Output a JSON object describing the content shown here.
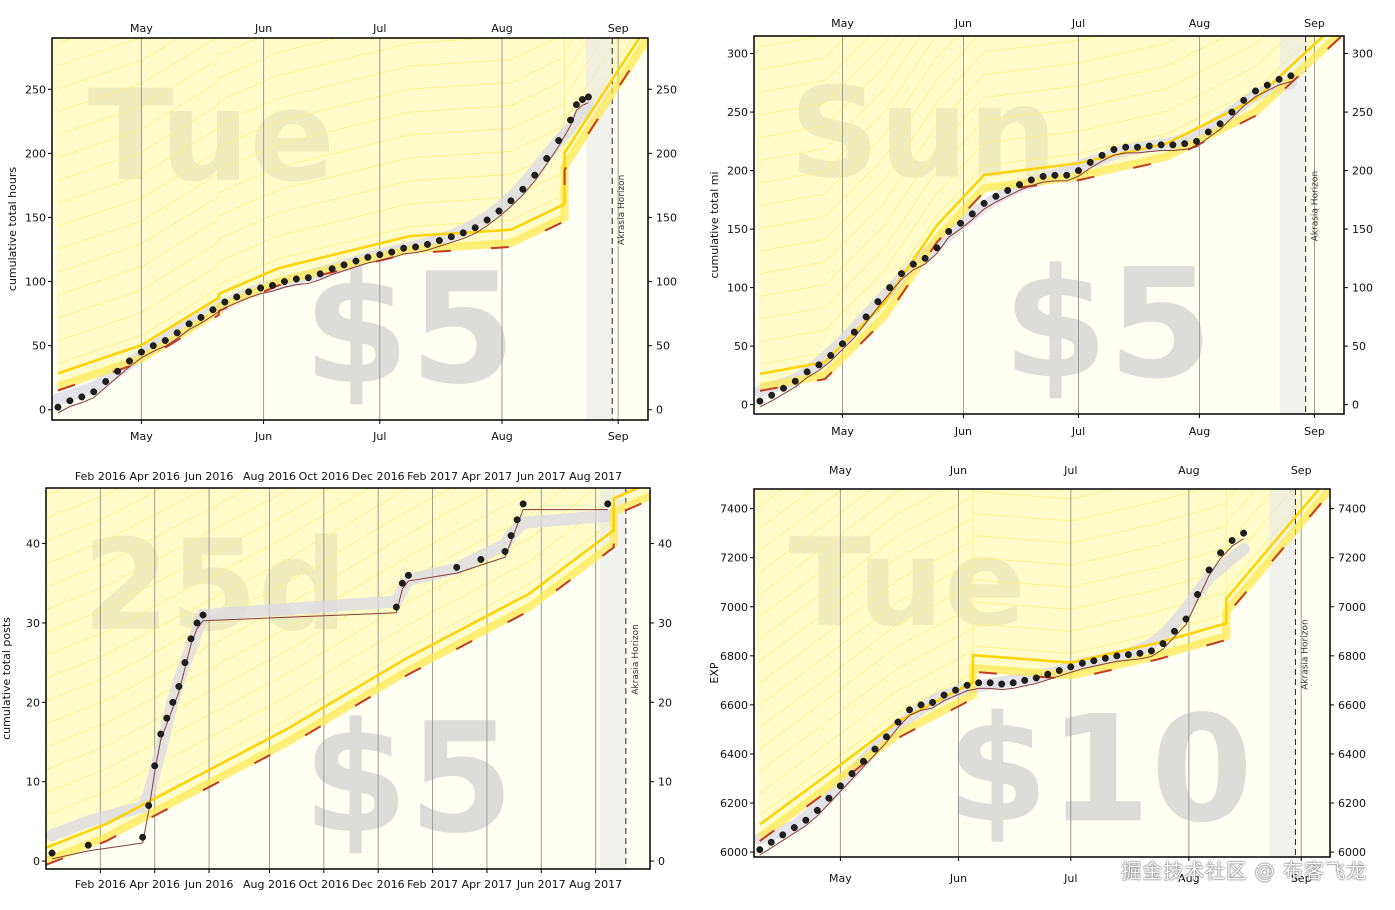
{
  "watermark": "掘金技术社区 @ 布客飞龙",
  "colors": {
    "plot_bg": "#fffff4",
    "road_fill": "#fffaa8",
    "road_line": "#ffd200",
    "faint_line": "#faf38a",
    "pink_dotted": "#e8a080",
    "datapoint": "#1f1f1f",
    "trend_line": "#8b3a3a",
    "moving_avg": "#d9d9e6",
    "watermark_text": "#d0d0d0",
    "dash_red": "#c23b22",
    "axis": "#000000",
    "month_line": "#9a9a9a"
  },
  "chart_data": [
    {
      "id": "tl",
      "type": "line",
      "ylabel": "cumulative total hours",
      "ylim": [
        -8,
        290
      ],
      "yticks": [
        0,
        50,
        100,
        150,
        200,
        250
      ],
      "xlim": [
        0,
        100
      ],
      "months": [
        {
          "label": "May",
          "x": 15
        },
        {
          "label": "Jun",
          "x": 35.5
        },
        {
          "label": "Jul",
          "x": 55
        },
        {
          "label": "Aug",
          "x": 75.5
        },
        {
          "label": "Sep",
          "x": 95
        }
      ],
      "day_text": "Tue",
      "pledge_text": "$5",
      "horizon_label": "Akrasia Horizon",
      "horizon_x": 94,
      "road": [
        [
          1,
          18
        ],
        [
          15,
          40
        ],
        [
          28,
          77
        ],
        [
          28,
          80
        ],
        [
          38,
          100
        ],
        [
          60,
          125
        ],
        [
          77,
          130
        ],
        [
          86,
          150
        ],
        [
          86,
          190
        ],
        [
          100,
          290
        ]
      ],
      "points": [
        [
          1,
          2
        ],
        [
          3,
          7
        ],
        [
          5,
          10
        ],
        [
          7,
          14
        ],
        [
          9,
          22
        ],
        [
          11,
          30
        ],
        [
          13,
          38
        ],
        [
          15,
          45
        ],
        [
          17,
          50
        ],
        [
          19,
          54
        ],
        [
          21,
          60
        ],
        [
          23,
          67
        ],
        [
          25,
          72
        ],
        [
          27,
          78
        ],
        [
          29,
          84
        ],
        [
          31,
          88
        ],
        [
          33,
          92
        ],
        [
          35,
          95
        ],
        [
          37,
          97
        ],
        [
          39,
          100
        ],
        [
          41,
          102
        ],
        [
          43,
          103
        ],
        [
          45,
          106
        ],
        [
          47,
          110
        ],
        [
          49,
          113
        ],
        [
          51,
          116
        ],
        [
          53,
          119
        ],
        [
          55,
          121
        ],
        [
          57,
          123
        ],
        [
          59,
          126
        ],
        [
          61,
          127
        ],
        [
          63,
          129
        ],
        [
          65,
          132
        ],
        [
          67,
          135
        ],
        [
          69,
          138
        ],
        [
          71,
          142
        ],
        [
          73,
          148
        ],
        [
          75,
          155
        ],
        [
          77,
          163
        ],
        [
          79,
          172
        ],
        [
          81,
          183
        ],
        [
          83,
          196
        ],
        [
          85,
          210
        ],
        [
          87,
          226
        ],
        [
          88,
          238
        ],
        [
          89,
          242
        ],
        [
          90,
          244
        ]
      ]
    },
    {
      "id": "tr",
      "type": "line",
      "ylabel": "cumulative total mi",
      "ylim": [
        -8,
        315
      ],
      "yticks": [
        0,
        50,
        100,
        150,
        200,
        250,
        300
      ],
      "xlim": [
        0,
        100
      ],
      "months": [
        {
          "label": "May",
          "x": 15
        },
        {
          "label": "Jun",
          "x": 35.5
        },
        {
          "label": "Jul",
          "x": 55
        },
        {
          "label": "Aug",
          "x": 75.5
        },
        {
          "label": "Sep",
          "x": 95
        }
      ],
      "day_text": "Sun",
      "pledge_text": "$5",
      "horizon_label": "Akrasia Horizon",
      "horizon_x": 93.5,
      "road": [
        [
          1,
          15
        ],
        [
          12,
          25
        ],
        [
          22,
          75
        ],
        [
          31,
          142
        ],
        [
          39,
          185
        ],
        [
          55,
          195
        ],
        [
          70,
          212
        ],
        [
          85,
          250
        ],
        [
          100,
          320
        ]
      ],
      "points": [
        [
          1,
          3
        ],
        [
          3,
          8
        ],
        [
          5,
          14
        ],
        [
          7,
          20
        ],
        [
          9,
          28
        ],
        [
          11,
          34
        ],
        [
          13,
          42
        ],
        [
          15,
          52
        ],
        [
          17,
          62
        ],
        [
          19,
          75
        ],
        [
          21,
          88
        ],
        [
          23,
          100
        ],
        [
          25,
          112
        ],
        [
          27,
          120
        ],
        [
          29,
          125
        ],
        [
          31,
          134
        ],
        [
          33,
          148
        ],
        [
          35,
          155
        ],
        [
          37,
          163
        ],
        [
          39,
          172
        ],
        [
          41,
          178
        ],
        [
          43,
          183
        ],
        [
          45,
          188
        ],
        [
          47,
          192
        ],
        [
          49,
          195
        ],
        [
          51,
          196
        ],
        [
          53,
          196
        ],
        [
          55,
          200
        ],
        [
          57,
          207
        ],
        [
          59,
          213
        ],
        [
          61,
          218
        ],
        [
          63,
          220
        ],
        [
          65,
          220
        ],
        [
          67,
          221
        ],
        [
          69,
          222
        ],
        [
          71,
          222
        ],
        [
          73,
          223
        ],
        [
          75,
          225
        ],
        [
          77,
          233
        ],
        [
          79,
          240
        ],
        [
          81,
          250
        ],
        [
          83,
          260
        ],
        [
          85,
          268
        ],
        [
          87,
          273
        ],
        [
          89,
          278
        ],
        [
          91,
          281
        ]
      ]
    },
    {
      "id": "bl",
      "type": "line",
      "ylabel": "cumulative total posts",
      "ylim": [
        -1,
        47
      ],
      "yticks": [
        0,
        10,
        20,
        30,
        40
      ],
      "xlim": [
        0,
        100
      ],
      "months": [
        {
          "label": "Feb 2016",
          "x": 9
        },
        {
          "label": "Apr 2016",
          "x": 18
        },
        {
          "label": "Jun 2016",
          "x": 27
        },
        {
          "label": "Aug 2016",
          "x": 37
        },
        {
          "label": "Oct 2016",
          "x": 46
        },
        {
          "label": "Dec 2016",
          "x": 55
        },
        {
          "label": "Feb 2017",
          "x": 64
        },
        {
          "label": "Apr 2017",
          "x": 73
        },
        {
          "label": "Jun 2017",
          "x": 82
        },
        {
          "label": "Aug 2017",
          "x": 91
        }
      ],
      "day_text": "25d",
      "pledge_text": "$5",
      "horizon_label": "Akrasia Horizon",
      "horizon_x": 96,
      "road": [
        [
          0,
          0
        ],
        [
          10,
          3
        ],
        [
          20,
          7
        ],
        [
          40,
          15
        ],
        [
          60,
          24
        ],
        [
          80,
          32
        ],
        [
          94,
          40
        ],
        [
          94,
          44
        ],
        [
          100,
          46
        ]
      ],
      "points": [
        [
          1,
          1
        ],
        [
          7,
          2
        ],
        [
          16,
          3
        ],
        [
          17,
          7
        ],
        [
          18,
          12
        ],
        [
          19,
          16
        ],
        [
          20,
          18
        ],
        [
          21,
          20
        ],
        [
          22,
          22
        ],
        [
          23,
          25
        ],
        [
          24,
          28
        ],
        [
          25,
          30
        ],
        [
          26,
          31
        ],
        [
          58,
          32
        ],
        [
          59,
          35
        ],
        [
          60,
          36
        ],
        [
          68,
          37
        ],
        [
          72,
          38
        ],
        [
          76,
          39
        ],
        [
          77,
          41
        ],
        [
          78,
          43
        ],
        [
          79,
          45
        ],
        [
          93,
          45
        ]
      ]
    },
    {
      "id": "br",
      "type": "line",
      "ylabel": "EXP",
      "ylim": [
        5980,
        7480
      ],
      "yticks": [
        6000,
        6200,
        6400,
        6600,
        6800,
        7000,
        7200,
        7400
      ],
      "xlim": [
        0,
        100
      ],
      "months": [
        {
          "label": "May",
          "x": 15
        },
        {
          "label": "Jun",
          "x": 35.5
        },
        {
          "label": "Jul",
          "x": 55
        },
        {
          "label": "Aug",
          "x": 75.5
        },
        {
          "label": "Sep",
          "x": 95
        }
      ],
      "day_text": "Tue",
      "pledge_text": "$10",
      "horizon_label": "Akrasia Horizon",
      "horizon_x": 94,
      "road": [
        [
          1,
          6060
        ],
        [
          12,
          6250
        ],
        [
          25,
          6480
        ],
        [
          38,
          6640
        ],
        [
          38,
          6750
        ],
        [
          55,
          6720
        ],
        [
          70,
          6800
        ],
        [
          82,
          6880
        ],
        [
          82,
          6980
        ],
        [
          100,
          7480
        ]
      ],
      "points": [
        [
          1,
          6010
        ],
        [
          3,
          6040
        ],
        [
          5,
          6070
        ],
        [
          7,
          6100
        ],
        [
          9,
          6130
        ],
        [
          11,
          6170
        ],
        [
          13,
          6220
        ],
        [
          15,
          6270
        ],
        [
          17,
          6320
        ],
        [
          19,
          6370
        ],
        [
          21,
          6420
        ],
        [
          23,
          6470
        ],
        [
          25,
          6530
        ],
        [
          27,
          6580
        ],
        [
          29,
          6600
        ],
        [
          31,
          6610
        ],
        [
          33,
          6640
        ],
        [
          35,
          6660
        ],
        [
          37,
          6680
        ],
        [
          39,
          6690
        ],
        [
          41,
          6690
        ],
        [
          43,
          6685
        ],
        [
          45,
          6690
        ],
        [
          47,
          6700
        ],
        [
          49,
          6710
        ],
        [
          51,
          6725
        ],
        [
          53,
          6740
        ],
        [
          55,
          6755
        ],
        [
          57,
          6770
        ],
        [
          59,
          6780
        ],
        [
          61,
          6790
        ],
        [
          63,
          6800
        ],
        [
          65,
          6805
        ],
        [
          67,
          6810
        ],
        [
          69,
          6820
        ],
        [
          71,
          6850
        ],
        [
          73,
          6900
        ],
        [
          75,
          6950
        ],
        [
          77,
          7050
        ],
        [
          79,
          7150
        ],
        [
          81,
          7220
        ],
        [
          83,
          7270
        ],
        [
          85,
          7300
        ]
      ]
    }
  ]
}
